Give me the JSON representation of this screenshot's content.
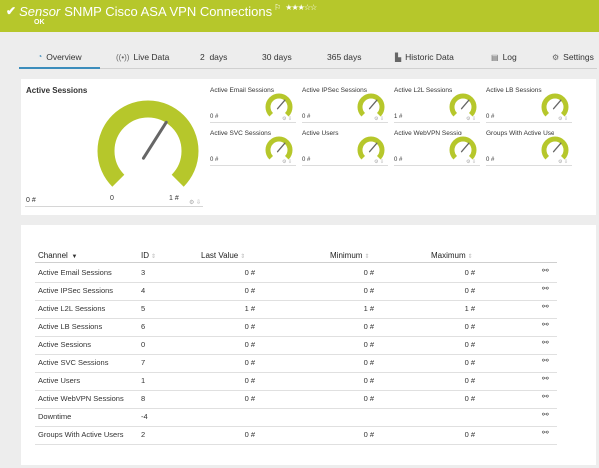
{
  "header": {
    "check": "✔",
    "sensor_word": "Sensor",
    "sensor_name": "SNMP Cisco ASA VPN Connections",
    "flag": "⚐",
    "stars": "★★★☆☆",
    "status": "OK",
    "bg_color": "#b6c72b"
  },
  "tabs": [
    {
      "label": "Overview",
      "icon": "◔",
      "icon_name": "gauge-icon",
      "active": true
    },
    {
      "label": "Live Data",
      "icon": "((•))",
      "icon_name": "live-data-icon",
      "active": false
    },
    {
      "label": "2  days",
      "icon": "",
      "active": false
    },
    {
      "label": "30 days",
      "icon": "",
      "active": false
    },
    {
      "label": "365 days",
      "icon": "",
      "active": false
    },
    {
      "label": "Historic Data",
      "icon": "▙",
      "icon_name": "chart-icon",
      "active": false
    },
    {
      "label": "Log",
      "icon": "▤",
      "icon_name": "log-icon",
      "active": false
    },
    {
      "label": "Settings",
      "icon": "⚙",
      "icon_name": "gear-icon",
      "active": false
    }
  ],
  "overview": {
    "main": {
      "title": "Active Sessions",
      "min_label": "0 #",
      "center_label": "0",
      "max_label": "1 #",
      "value_fraction": 0.5
    },
    "minis": [
      {
        "title": "Active Email Sessions",
        "value": "0 #",
        "needle_fraction": 0.5
      },
      {
        "title": "Active IPSec Sessions",
        "value": "0 #",
        "needle_fraction": 0.5
      },
      {
        "title": "Active L2L Sessions",
        "value": "1 #",
        "needle_fraction": 0.5
      },
      {
        "title": "Active LB Sessions",
        "value": "0 #",
        "needle_fraction": 0.5
      },
      {
        "title": "Active SVC Sessions",
        "value": "0 #",
        "needle_fraction": 0.5
      },
      {
        "title": "Active Users",
        "value": "0 #",
        "needle_fraction": 0.5
      },
      {
        "title": "Active WebVPN Sessions",
        "value": "0 #",
        "needle_fraction": 0.5
      },
      {
        "title": "Groups With Active Users",
        "value": "0 #",
        "needle_fraction": 0.5
      }
    ],
    "gauge_color": "#b6c72b"
  },
  "table": {
    "columns": {
      "channel": "Channel",
      "id": "ID",
      "last_value": "Last Value",
      "minimum": "Minimum",
      "maximum": "Maximum"
    },
    "rows": [
      {
        "channel": "Active Email Sessions",
        "id": "3",
        "last": "0 #",
        "min": "0 #",
        "max": "0 #"
      },
      {
        "channel": "Active IPSec Sessions",
        "id": "4",
        "last": "0 #",
        "min": "0 #",
        "max": "0 #"
      },
      {
        "channel": "Active L2L Sessions",
        "id": "5",
        "last": "1 #",
        "min": "1 #",
        "max": "1 #"
      },
      {
        "channel": "Active LB Sessions",
        "id": "6",
        "last": "0 #",
        "min": "0 #",
        "max": "0 #"
      },
      {
        "channel": "Active Sessions",
        "id": "0",
        "last": "0 #",
        "min": "0 #",
        "max": "0 #"
      },
      {
        "channel": "Active SVC Sessions",
        "id": "7",
        "last": "0 #",
        "min": "0 #",
        "max": "0 #"
      },
      {
        "channel": "Active Users",
        "id": "1",
        "last": "0 #",
        "min": "0 #",
        "max": "0 #"
      },
      {
        "channel": "Active WebVPN Sessions",
        "id": "8",
        "last": "0 #",
        "min": "0 #",
        "max": "0 #"
      },
      {
        "channel": "Downtime",
        "id": "-4",
        "last": "",
        "min": "",
        "max": ""
      },
      {
        "channel": "Groups With Active Users",
        "id": "2",
        "last": "0 #",
        "min": "0 #",
        "max": "0 #"
      }
    ]
  }
}
